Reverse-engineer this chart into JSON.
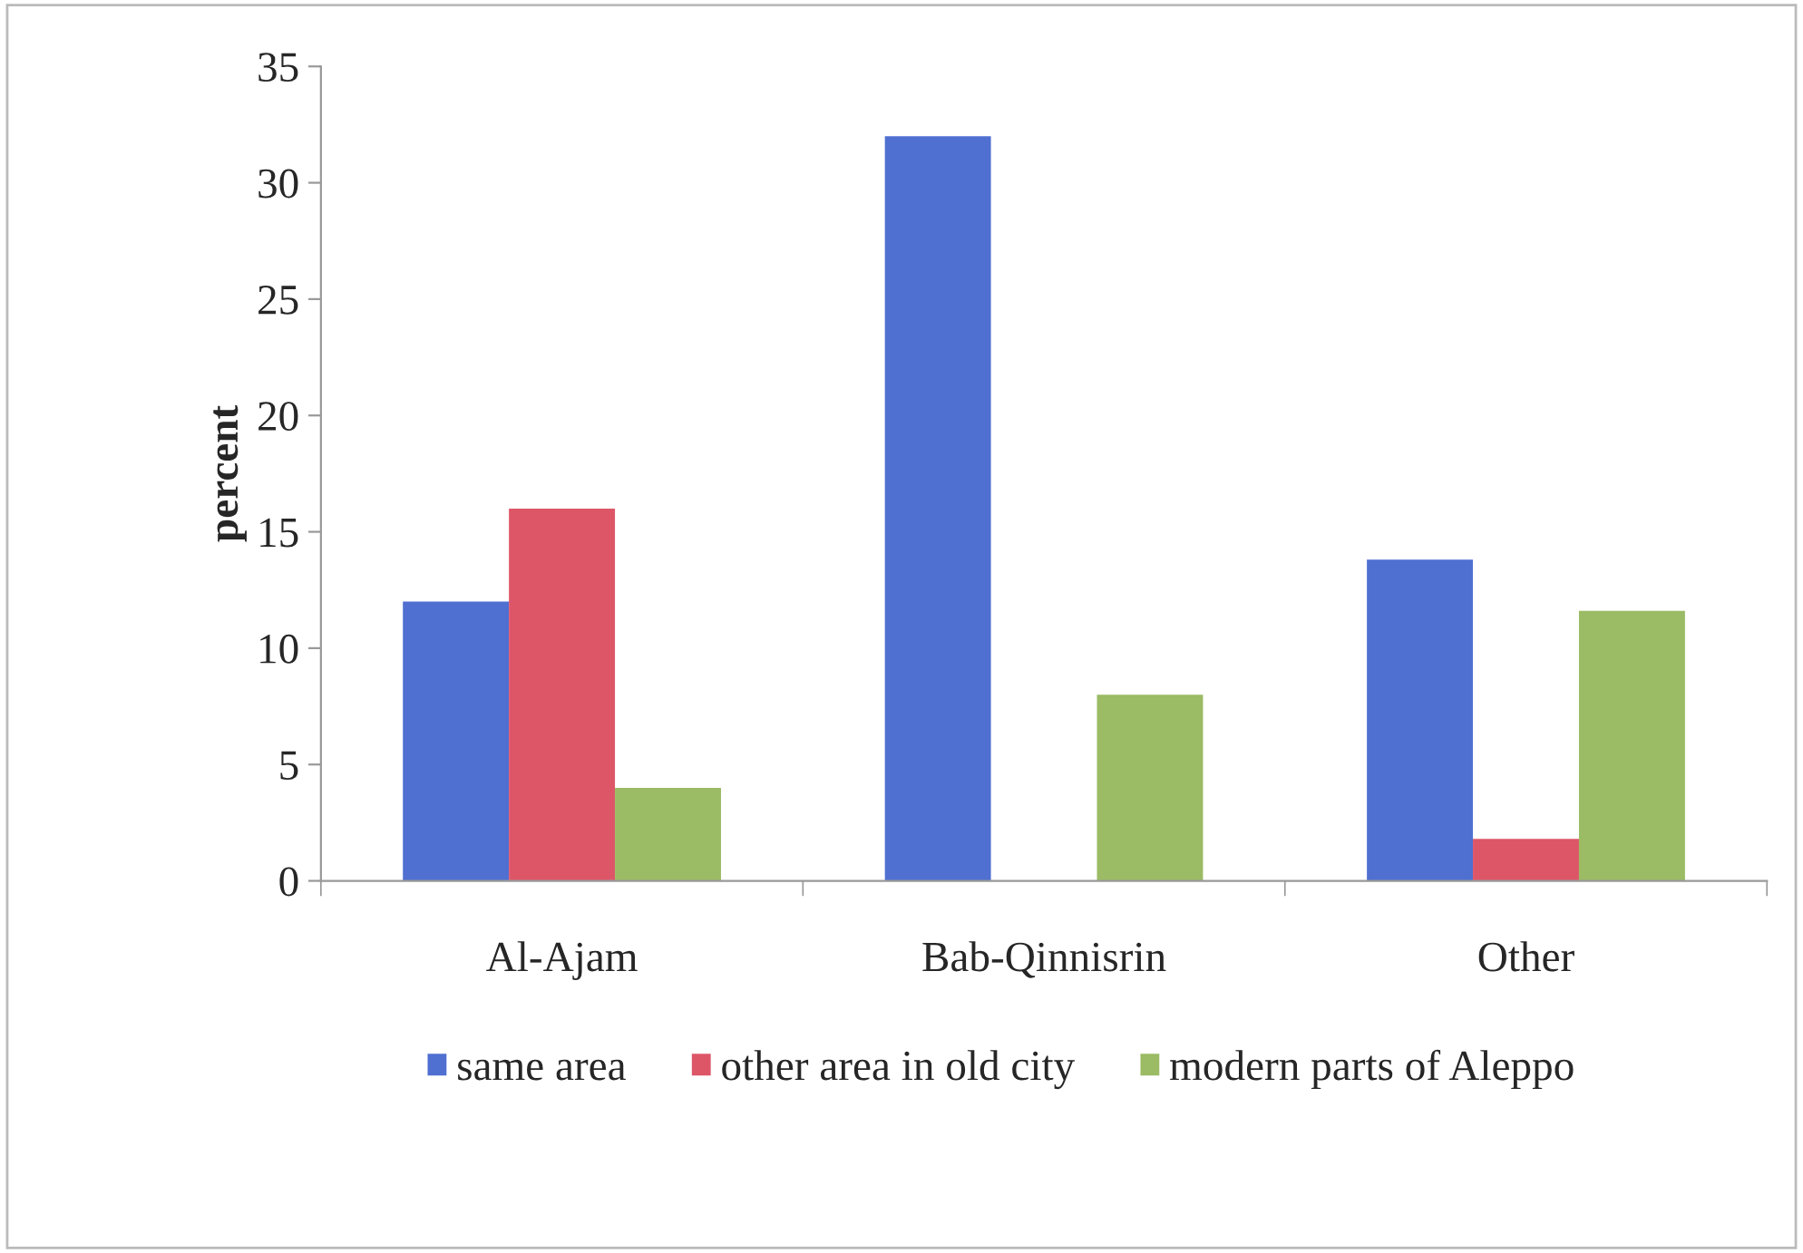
{
  "chart_data": {
    "type": "bar",
    "ylabel": "percent",
    "categories": [
      "Al-Ajam",
      "Bab-Qinnisrin",
      "Other"
    ],
    "series": [
      {
        "name": "same area",
        "color": "#4f6fd1",
        "values": [
          12,
          32,
          13.8
        ]
      },
      {
        "name": "other area in old city",
        "color": "#dd5668",
        "values": [
          16,
          0,
          1.8
        ]
      },
      {
        "name": "modern parts of Aleppo",
        "color": "#9bbb64",
        "values": [
          4,
          8,
          11.6
        ]
      }
    ],
    "ylim": [
      0,
      35
    ],
    "yticks": [
      0,
      5,
      10,
      15,
      20,
      25,
      30,
      35
    ],
    "grid": false,
    "legend": "bottom"
  }
}
